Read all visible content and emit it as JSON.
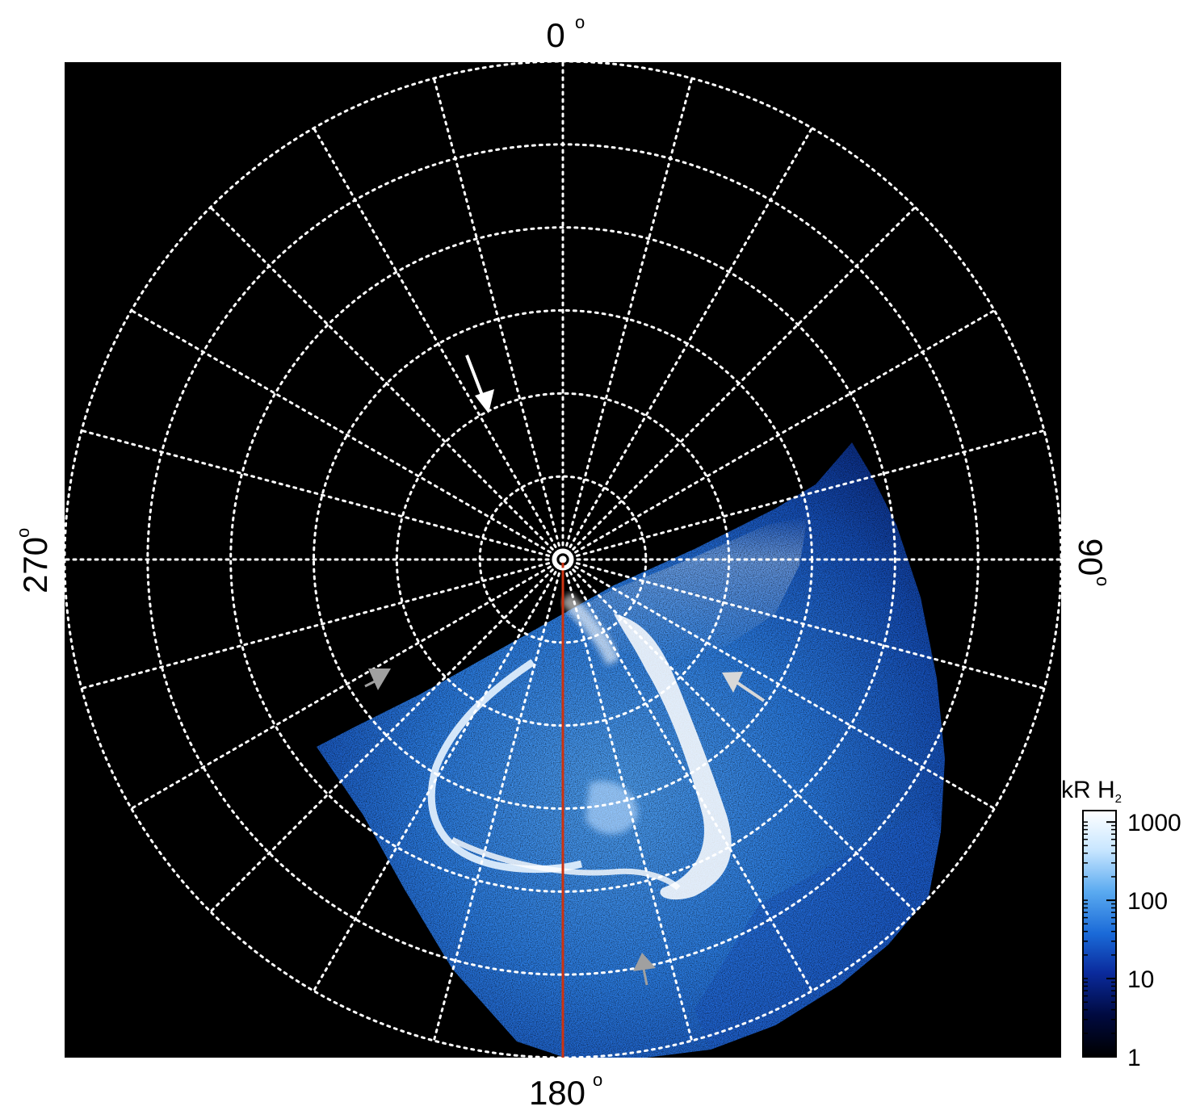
{
  "projection": "polar",
  "compass_labels": {
    "top": "0",
    "right": "90",
    "bottom": "180",
    "left": "270",
    "degree_symbol": "o"
  },
  "colorbar": {
    "title": "kR H",
    "title_subscript": "2",
    "scale": "log",
    "ticks": [
      "1000",
      "100",
      "10",
      "1"
    ],
    "tick_values": [
      1000,
      100,
      10,
      1
    ],
    "colors": [
      "#000000",
      "#000a40",
      "#0a2a9c",
      "#1a6ad8",
      "#5aaaf0",
      "#c8e6ff",
      "#ffffff"
    ]
  },
  "grid": {
    "style": "dotted",
    "color": "#ffffff",
    "meridian_spacing_deg": 15,
    "rings": 6
  },
  "highlight_meridian": {
    "longitude_deg": 180,
    "color": "#cc3311"
  },
  "arrows": [
    {
      "name": "white-arrow-top",
      "color": "#ffffff"
    },
    {
      "name": "gray-arrow-left",
      "color": "#a0a0a0"
    },
    {
      "name": "gray-arrow-right",
      "color": "#d8d8d8"
    },
    {
      "name": "gray-arrow-bottom",
      "color": "#a0a0a0"
    }
  ],
  "colors": {
    "background": "#000000",
    "aurora_deep": "#0b3a9e",
    "aurora_mid": "#2a7be0",
    "aurora_bright": "#ffffff"
  }
}
